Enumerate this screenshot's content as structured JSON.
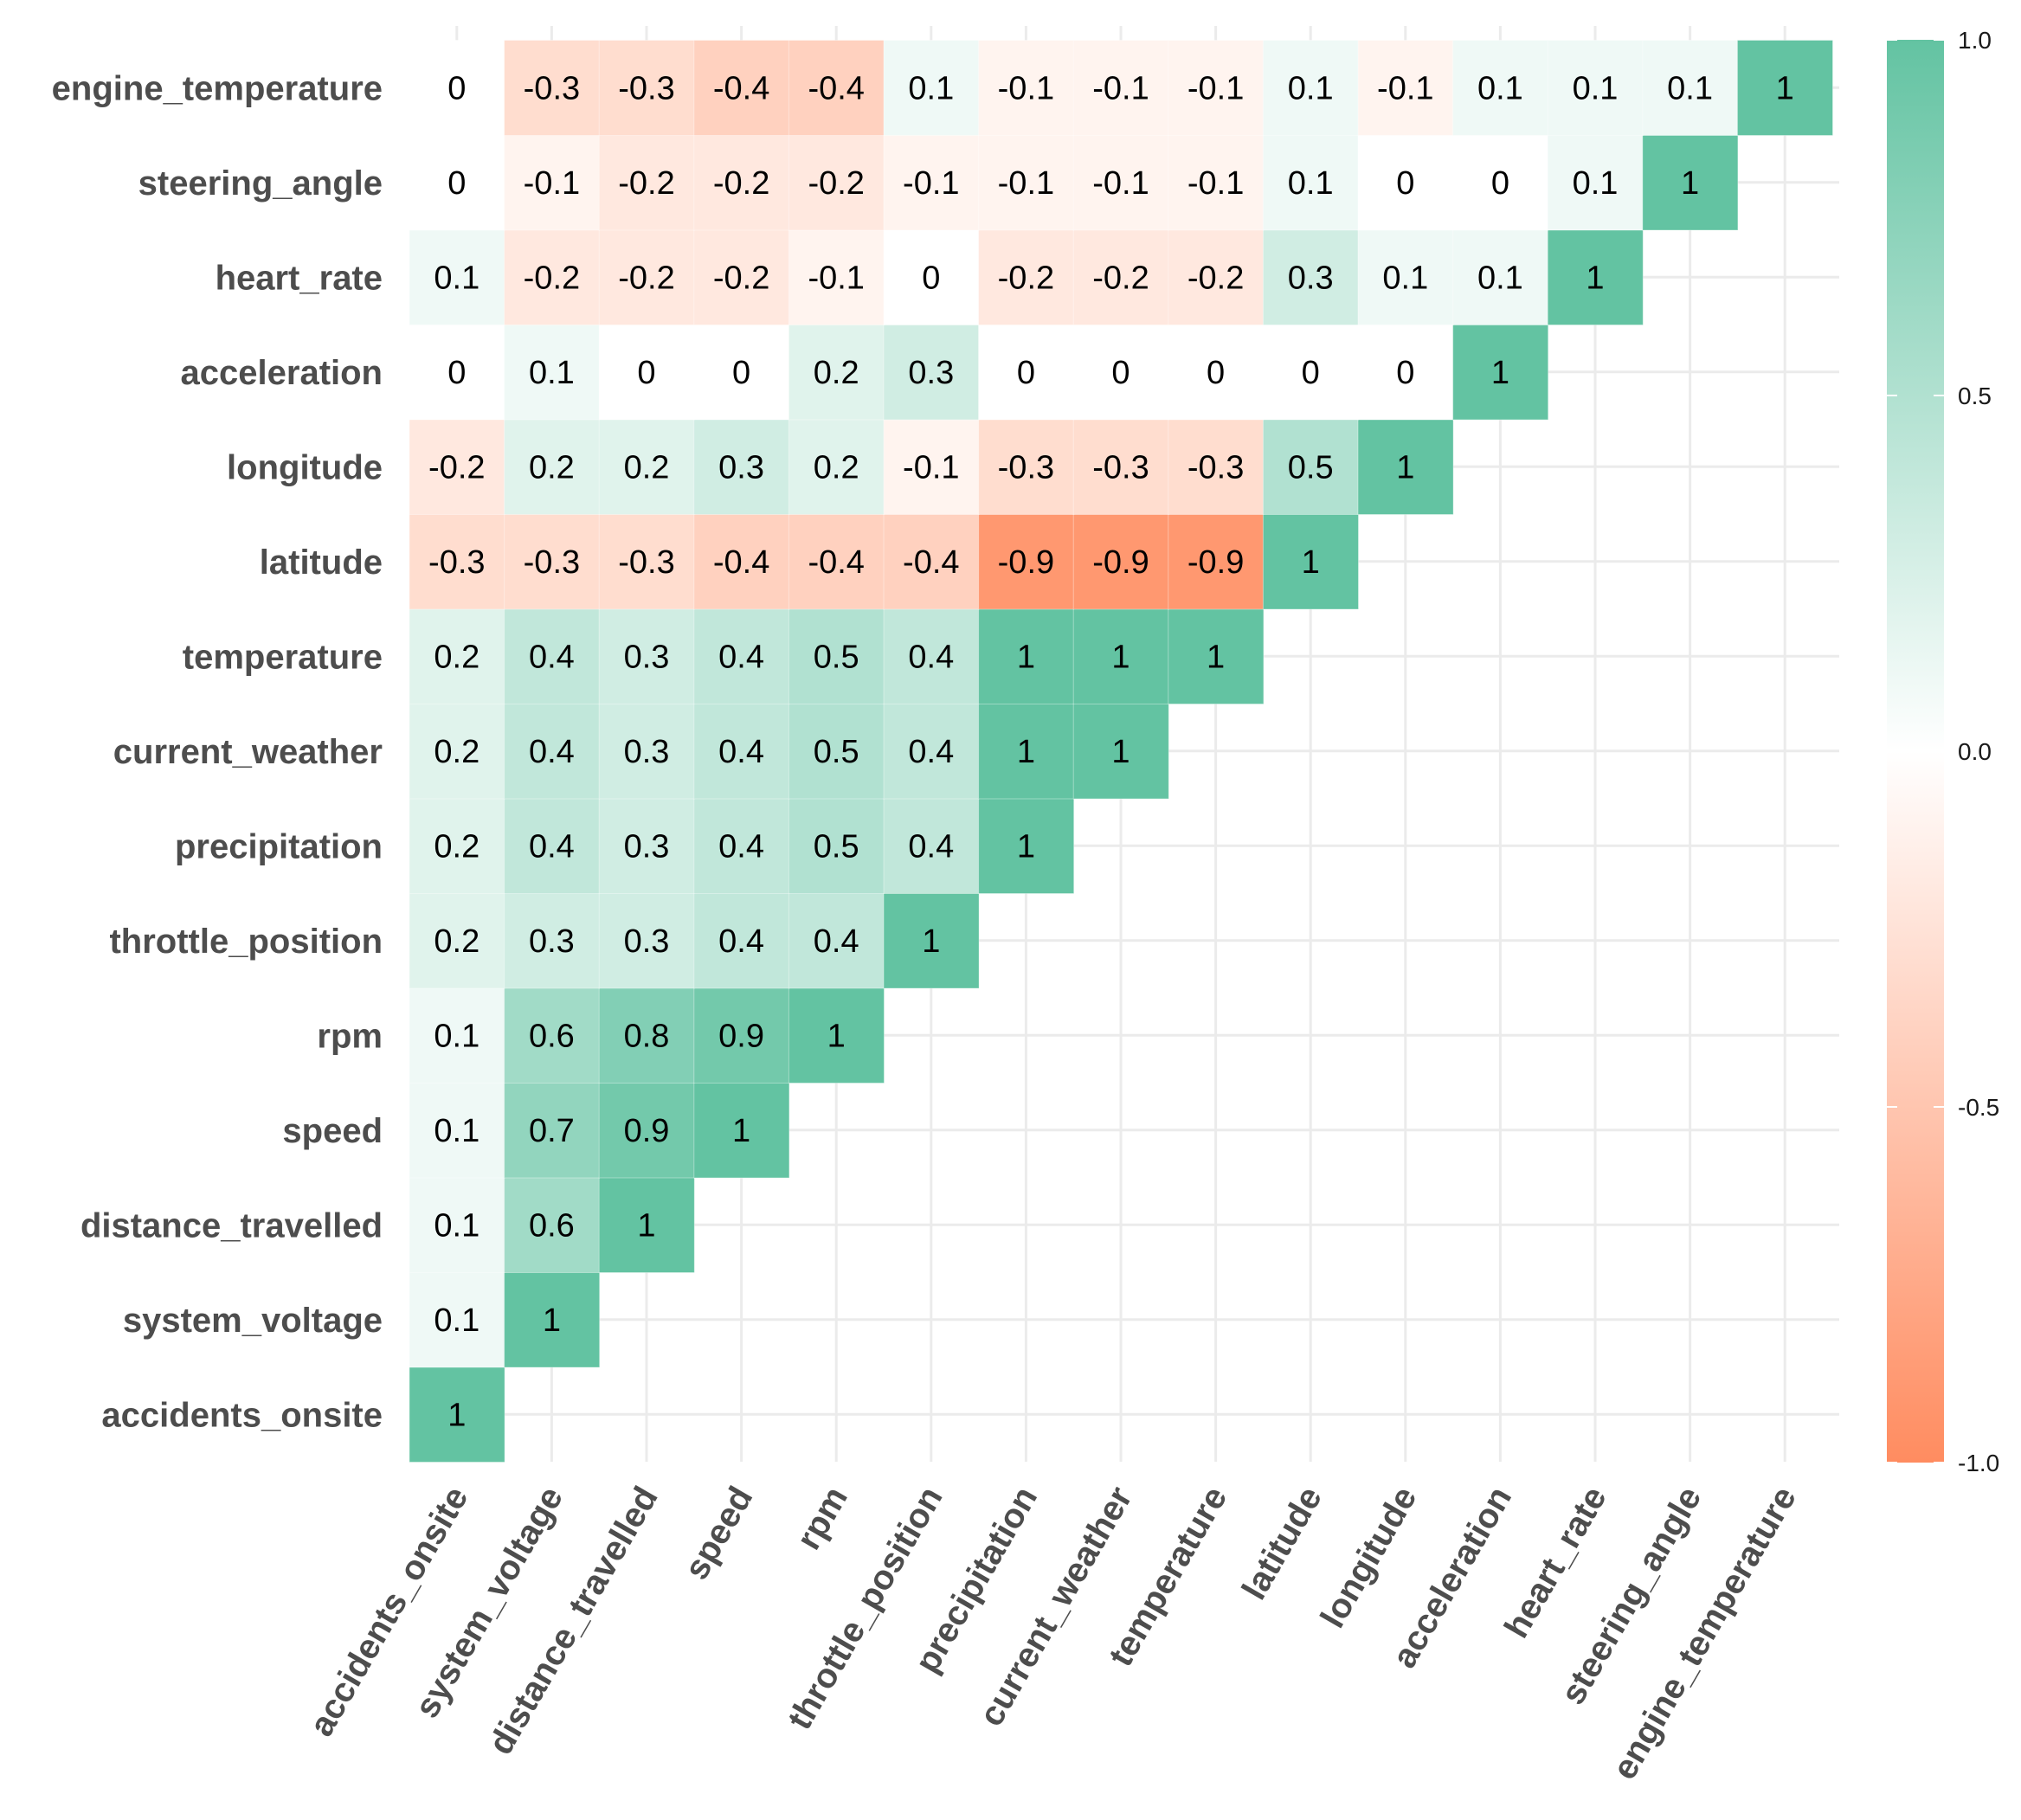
{
  "chart_data": {
    "type": "heatmap",
    "title": "",
    "xlabel": "",
    "ylabel": "",
    "variables": [
      "accidents_onsite",
      "system_voltage",
      "distance_travelled",
      "speed",
      "rpm",
      "throttle_position",
      "precipitation",
      "current_weather",
      "temperature",
      "latitude",
      "longitude",
      "acceleration",
      "heart_rate",
      "steering_angle",
      "engine_temperature"
    ],
    "matrix": [
      [
        1
      ],
      [
        0.1,
        1
      ],
      [
        0.1,
        0.6,
        1
      ],
      [
        0.1,
        0.7,
        0.9,
        1
      ],
      [
        0.1,
        0.6,
        0.8,
        0.9,
        1
      ],
      [
        0.2,
        0.3,
        0.3,
        0.4,
        0.4,
        1
      ],
      [
        0.2,
        0.4,
        0.3,
        0.4,
        0.5,
        0.4,
        1
      ],
      [
        0.2,
        0.4,
        0.3,
        0.4,
        0.5,
        0.4,
        1,
        1
      ],
      [
        0.2,
        0.4,
        0.3,
        0.4,
        0.5,
        0.4,
        1,
        1,
        1
      ],
      [
        -0.3,
        -0.3,
        -0.3,
        -0.4,
        -0.4,
        -0.4,
        -0.9,
        -0.9,
        -0.9,
        1
      ],
      [
        -0.2,
        0.2,
        0.2,
        0.3,
        0.2,
        -0.1,
        -0.3,
        -0.3,
        -0.3,
        0.5,
        1
      ],
      [
        0,
        0.1,
        0,
        0,
        0.2,
        0.3,
        0,
        0,
        0,
        0,
        0,
        1
      ],
      [
        0.1,
        -0.2,
        -0.2,
        -0.2,
        -0.1,
        0,
        -0.2,
        -0.2,
        -0.2,
        0.3,
        0.1,
        0.1,
        1
      ],
      [
        0,
        -0.1,
        -0.2,
        -0.2,
        -0.2,
        -0.1,
        -0.1,
        -0.1,
        -0.1,
        0.1,
        0,
        0,
        0.1,
        1
      ],
      [
        0,
        -0.3,
        -0.3,
        -0.4,
        -0.4,
        0.1,
        -0.1,
        -0.1,
        -0.1,
        0.1,
        -0.1,
        0.1,
        0.1,
        0.1,
        1
      ]
    ],
    "color_scale": {
      "low": "#FF8C60",
      "mid": "#FFFFFF",
      "high": "#63C3A2",
      "range": [
        -1,
        1
      ]
    },
    "legend": {
      "position": "right",
      "ticks": [
        "1.0",
        "0.5",
        "0.0",
        "-0.5",
        "-1.0"
      ],
      "tick_values": [
        1,
        0.5,
        0,
        -0.5,
        -1
      ]
    },
    "grid": true
  }
}
